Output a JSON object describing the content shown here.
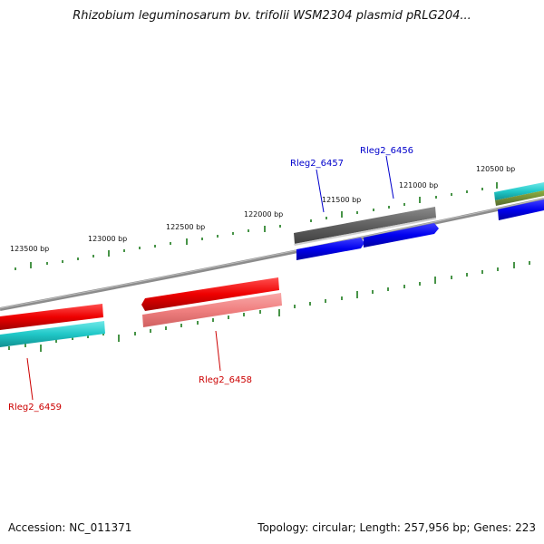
{
  "title": "Rhizobium leguminosarum bv. trifolii WSM2304 plasmid pRLG204...",
  "footer": {
    "accession": "Accession: NC_011371",
    "summary": "Topology: circular; Length: 257,956 bp; Genes: 223"
  },
  "scale_labels": [
    "123500 bp",
    "123000 bp",
    "122500 bp",
    "122000 bp",
    "121500 bp",
    "121000 bp",
    "120500 bp"
  ],
  "gene_labels": [
    {
      "text": "Rleg2_6457",
      "color": "#0000cc"
    },
    {
      "text": "Rleg2_6456",
      "color": "#0000cc"
    },
    {
      "text": "Rleg2_6458",
      "color": "#cc0000"
    },
    {
      "text": "Rleg2_6459",
      "color": "#cc0000"
    }
  ],
  "colors": {
    "backbone": "#808080",
    "tick": "#1a7a1a",
    "forward_cds": "#0000ee",
    "reverse_cds": "#ee0000",
    "reverse_cds_light": "#f08080",
    "gray_feature": "#606060",
    "cyan_feature": "#20c8c8",
    "olive_feature": "#6b8e23"
  }
}
